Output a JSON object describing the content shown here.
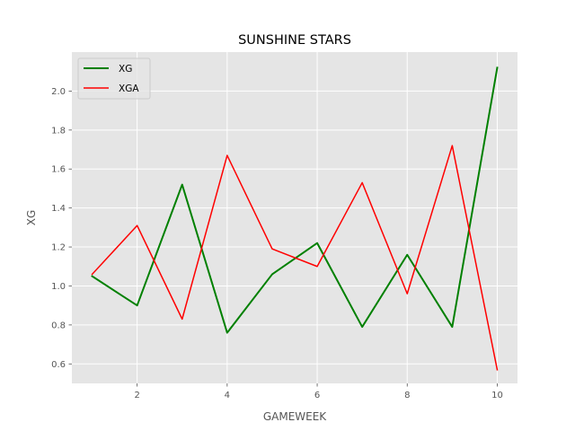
{
  "chart_data": {
    "type": "line",
    "title": "SUNSHINE STARS",
    "xlabel": "GAMEWEEK",
    "ylabel": "XG",
    "x": [
      1,
      2,
      3,
      4,
      5,
      6,
      7,
      8,
      9,
      10
    ],
    "xlim": [
      0.55,
      10.45
    ],
    "ylim": [
      0.5,
      2.2
    ],
    "x_ticks": [
      2,
      4,
      6,
      8,
      10
    ],
    "y_ticks": [
      0.6,
      0.8,
      1.0,
      1.2,
      1.4,
      1.6,
      1.8,
      2.0
    ],
    "grid": true,
    "legend_position": "top-left",
    "series": [
      {
        "name": "XG",
        "color": "#008000",
        "values": [
          1.05,
          0.9,
          1.52,
          0.76,
          1.06,
          1.22,
          0.79,
          1.16,
          0.79,
          2.12
        ]
      },
      {
        "name": "XGA",
        "color": "#ff0000",
        "values": [
          1.06,
          1.31,
          0.83,
          1.67,
          1.19,
          1.1,
          1.53,
          0.96,
          1.72,
          0.57
        ]
      }
    ]
  }
}
